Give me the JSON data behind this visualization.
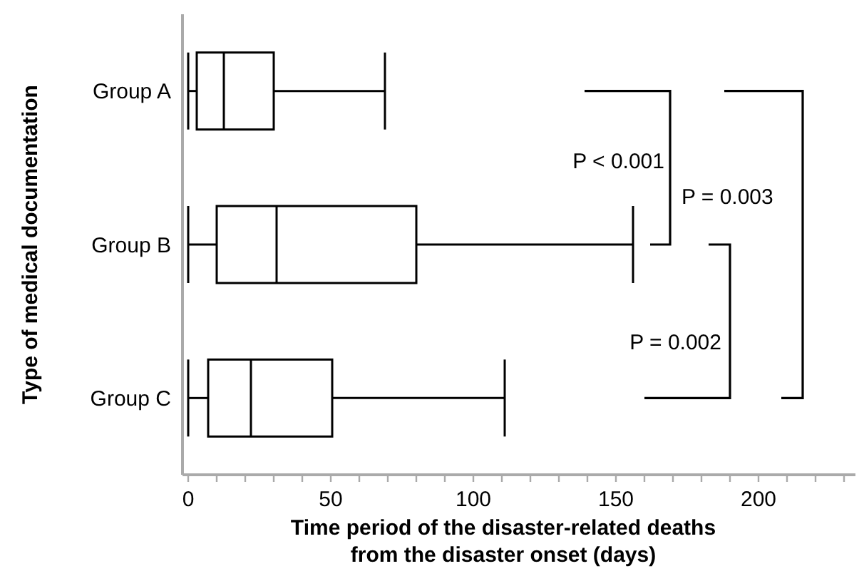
{
  "chart_data": {
    "type": "box",
    "orientation": "horizontal",
    "xlabel": "Time period of the disaster-related deaths from the disaster onset (days)",
    "ylabel": "Type of medical documentation",
    "categories": [
      "Group A",
      "Group B",
      "Group C"
    ],
    "boxes": [
      {
        "low": 0,
        "q1": 3,
        "median": 12.5,
        "q3": 30,
        "high": 69
      },
      {
        "low": 0,
        "q1": 10,
        "median": 31,
        "q3": 80,
        "high": 156
      },
      {
        "low": 0,
        "q1": 7,
        "median": 22,
        "q3": 50.5,
        "high": 111
      }
    ],
    "color": "#000000",
    "xlim": [
      -2,
      234
    ],
    "xticks": [
      0,
      {
        "value": 10,
        "label": null
      },
      {
        "value": 20,
        "label": null
      },
      {
        "value": 30,
        "label": null
      },
      {
        "value": 40,
        "label": null
      },
      50,
      {
        "value": 60,
        "label": null
      },
      {
        "value": 70,
        "label": null
      },
      {
        "value": 80,
        "label": null
      },
      {
        "value": 90,
        "label": null
      },
      100,
      {
        "value": 110,
        "label": null
      },
      {
        "value": 120,
        "label": null
      },
      {
        "value": 130,
        "label": null
      },
      {
        "value": 140,
        "label": null
      },
      150,
      {
        "value": 160,
        "label": null
      },
      {
        "value": 170,
        "label": null
      },
      {
        "value": 180,
        "label": null
      },
      {
        "value": 190,
        "label": null
      },
      200,
      {
        "value": 210,
        "label": null
      },
      {
        "value": 220,
        "label": null
      },
      {
        "value": 230,
        "label": null
      }
    ],
    "annotations": [
      "P < 0.001",
      "P = 0.003",
      "P = 0.002"
    ]
  }
}
